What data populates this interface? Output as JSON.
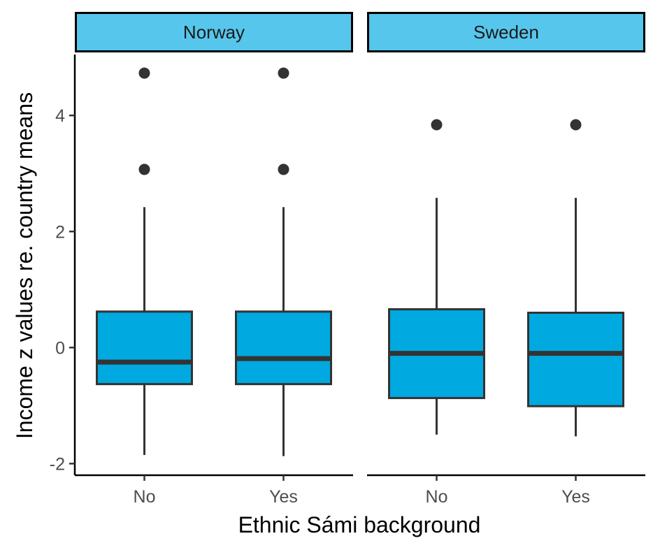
{
  "chart_data": {
    "type": "boxplot",
    "xlabel": "Ethnic Sámi background",
    "ylabel": "Income z values re. country means",
    "ylim": [
      -2.2,
      5.05
    ],
    "yticks": [
      -2,
      0,
      2,
      4
    ],
    "ytick_labels": [
      "-2",
      "0",
      "2",
      "4"
    ],
    "categories": [
      "No",
      "Yes"
    ],
    "facets": [
      {
        "label": "Norway",
        "boxes": [
          {
            "category": "No",
            "whisker_low": -1.85,
            "q1": -0.63,
            "median": -0.25,
            "q3": 0.62,
            "whisker_high": 2.42,
            "outliers": [
              3.07,
              4.73
            ]
          },
          {
            "category": "Yes",
            "whisker_low": -1.87,
            "q1": -0.63,
            "median": -0.19,
            "q3": 0.62,
            "whisker_high": 2.42,
            "outliers": [
              3.07,
              4.73
            ]
          }
        ]
      },
      {
        "label": "Sweden",
        "boxes": [
          {
            "category": "No",
            "whisker_low": -1.5,
            "q1": -0.87,
            "median": -0.1,
            "q3": 0.66,
            "whisker_high": 2.58,
            "outliers": [
              3.84
            ]
          },
          {
            "category": "Yes",
            "whisker_low": -1.53,
            "q1": -1.01,
            "median": -0.1,
            "q3": 0.6,
            "whisker_high": 2.58,
            "outliers": [
              3.84
            ]
          }
        ]
      }
    ],
    "colors": {
      "box_fill": "#00A9E0",
      "strip_fill": "#56C6EC",
      "line": "#333333",
      "axis": "#000000"
    },
    "grid": false,
    "legend": "none"
  }
}
